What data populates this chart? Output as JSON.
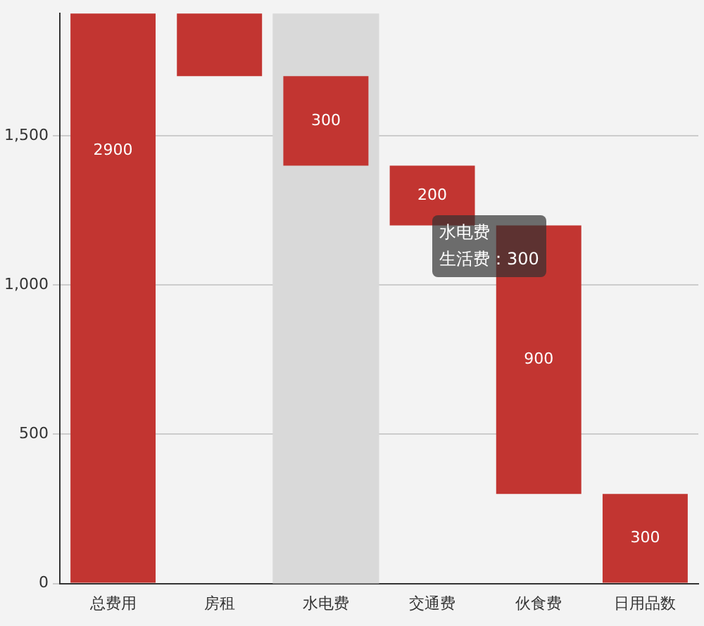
{
  "chart_data": {
    "type": "bar",
    "categories": [
      "总费用",
      "房租",
      "水电费",
      "交通费",
      "伙食费",
      "日用品数"
    ],
    "series": [
      {
        "name": "生活费",
        "color": "#c23531",
        "values": [
          2900,
          1200,
          300,
          200,
          900,
          300
        ],
        "base": [
          0,
          1700,
          1400,
          1200,
          300,
          0
        ],
        "value_labels": [
          "2900",
          null,
          "300",
          "200",
          "900",
          "300"
        ]
      }
    ],
    "ylim": [
      0,
      1910
    ],
    "yticks": [
      0,
      500,
      {
        "value": 1000,
        "label": "1,000"
      },
      {
        "value": 1500,
        "label": "1,500"
      }
    ],
    "grid": "y",
    "legend": false,
    "bands": [
      {
        "axis": "x",
        "from": "水电费",
        "to": "水电费",
        "color": "#d9d9d9"
      }
    ],
    "annotations": [
      "水电费",
      "：300"
    ]
  }
}
